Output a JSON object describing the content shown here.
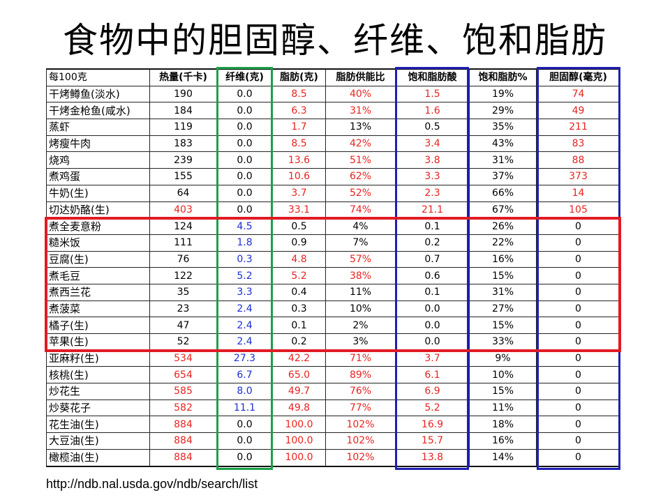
{
  "title": "食物中的胆固醇、纤维、饱和脂肪",
  "colors": {
    "red_text": "#e8231f",
    "blue_text": "#1b2fd1",
    "fiber_box": "#1aa04a",
    "satfat_box": "#1f1fb3",
    "cholesterol_box": "#1f1fb3",
    "plant_food_box": "#e01b24"
  },
  "table": {
    "headers": [
      "每100克",
      "热量(千卡)",
      "纤维(克)",
      "脂肪(克)",
      "脂肪供能比",
      "饱和脂肪酸",
      "饱和脂肪%",
      "胆固醇(毫克)"
    ],
    "rows": [
      {
        "name": "干烤鳟鱼(淡水)",
        "cells": [
          [
            "190",
            "black"
          ],
          [
            "0.0",
            "black"
          ],
          [
            "8.5",
            "red"
          ],
          [
            "40%",
            "red"
          ],
          [
            "1.5",
            "red"
          ],
          [
            "19%",
            "black"
          ],
          [
            "74",
            "red"
          ]
        ]
      },
      {
        "name": "干烤金枪鱼(咸水)",
        "cells": [
          [
            "184",
            "black"
          ],
          [
            "0.0",
            "black"
          ],
          [
            "6.3",
            "red"
          ],
          [
            "31%",
            "red"
          ],
          [
            "1.6",
            "red"
          ],
          [
            "29%",
            "black"
          ],
          [
            "49",
            "red"
          ]
        ]
      },
      {
        "name": "蒸虾",
        "cells": [
          [
            "119",
            "black"
          ],
          [
            "0.0",
            "black"
          ],
          [
            "1.7",
            "red"
          ],
          [
            "13%",
            "black"
          ],
          [
            "0.5",
            "black"
          ],
          [
            "35%",
            "black"
          ],
          [
            "211",
            "red"
          ]
        ]
      },
      {
        "name": "烤瘦牛肉",
        "cells": [
          [
            "183",
            "black"
          ],
          [
            "0.0",
            "black"
          ],
          [
            "8.5",
            "red"
          ],
          [
            "42%",
            "red"
          ],
          [
            "3.4",
            "red"
          ],
          [
            "43%",
            "black"
          ],
          [
            "83",
            "red"
          ]
        ]
      },
      {
        "name": "烧鸡",
        "cells": [
          [
            "239",
            "black"
          ],
          [
            "0.0",
            "black"
          ],
          [
            "13.6",
            "red"
          ],
          [
            "51%",
            "red"
          ],
          [
            "3.8",
            "red"
          ],
          [
            "31%",
            "black"
          ],
          [
            "88",
            "red"
          ]
        ]
      },
      {
        "name": "煮鸡蛋",
        "cells": [
          [
            "155",
            "black"
          ],
          [
            "0.0",
            "black"
          ],
          [
            "10.6",
            "red"
          ],
          [
            "62%",
            "red"
          ],
          [
            "3.3",
            "red"
          ],
          [
            "37%",
            "black"
          ],
          [
            "373",
            "red"
          ]
        ]
      },
      {
        "name": "牛奶(生)",
        "cells": [
          [
            "64",
            "black"
          ],
          [
            "0.0",
            "black"
          ],
          [
            "3.7",
            "red"
          ],
          [
            "52%",
            "red"
          ],
          [
            "2.3",
            "red"
          ],
          [
            "66%",
            "black"
          ],
          [
            "14",
            "red"
          ]
        ]
      },
      {
        "name": "切达奶酪(生)",
        "cells": [
          [
            "403",
            "red"
          ],
          [
            "0.0",
            "black"
          ],
          [
            "33.1",
            "red"
          ],
          [
            "74%",
            "red"
          ],
          [
            "21.1",
            "red"
          ],
          [
            "67%",
            "black"
          ],
          [
            "105",
            "red"
          ]
        ]
      },
      {
        "name": "煮全麦意粉",
        "cells": [
          [
            "124",
            "black"
          ],
          [
            "4.5",
            "blue"
          ],
          [
            "0.5",
            "black"
          ],
          [
            "4%",
            "black"
          ],
          [
            "0.1",
            "black"
          ],
          [
            "26%",
            "black"
          ],
          [
            "0",
            "black"
          ]
        ]
      },
      {
        "name": "糙米饭",
        "cells": [
          [
            "111",
            "black"
          ],
          [
            "1.8",
            "blue"
          ],
          [
            "0.9",
            "black"
          ],
          [
            "7%",
            "black"
          ],
          [
            "0.2",
            "black"
          ],
          [
            "22%",
            "black"
          ],
          [
            "0",
            "black"
          ]
        ]
      },
      {
        "name": "豆腐(生)",
        "cells": [
          [
            "76",
            "black"
          ],
          [
            "0.3",
            "blue"
          ],
          [
            "4.8",
            "red"
          ],
          [
            "57%",
            "red"
          ],
          [
            "0.7",
            "black"
          ],
          [
            "16%",
            "black"
          ],
          [
            "0",
            "black"
          ]
        ]
      },
      {
        "name": "煮毛豆",
        "cells": [
          [
            "122",
            "black"
          ],
          [
            "5.2",
            "blue"
          ],
          [
            "5.2",
            "red"
          ],
          [
            "38%",
            "red"
          ],
          [
            "0.6",
            "black"
          ],
          [
            "15%",
            "black"
          ],
          [
            "0",
            "black"
          ]
        ]
      },
      {
        "name": "煮西兰花",
        "cells": [
          [
            "35",
            "black"
          ],
          [
            "3.3",
            "blue"
          ],
          [
            "0.4",
            "black"
          ],
          [
            "11%",
            "black"
          ],
          [
            "0.1",
            "black"
          ],
          [
            "31%",
            "black"
          ],
          [
            "0",
            "black"
          ]
        ]
      },
      {
        "name": "煮菠菜",
        "cells": [
          [
            "23",
            "black"
          ],
          [
            "2.4",
            "blue"
          ],
          [
            "0.3",
            "black"
          ],
          [
            "10%",
            "black"
          ],
          [
            "0.0",
            "black"
          ],
          [
            "27%",
            "black"
          ],
          [
            "0",
            "black"
          ]
        ]
      },
      {
        "name": "橘子(生)",
        "cells": [
          [
            "47",
            "black"
          ],
          [
            "2.4",
            "blue"
          ],
          [
            "0.1",
            "black"
          ],
          [
            "2%",
            "black"
          ],
          [
            "0.0",
            "black"
          ],
          [
            "15%",
            "black"
          ],
          [
            "0",
            "black"
          ]
        ]
      },
      {
        "name": "苹果(生)",
        "cells": [
          [
            "52",
            "black"
          ],
          [
            "2.4",
            "blue"
          ],
          [
            "0.2",
            "black"
          ],
          [
            "3%",
            "black"
          ],
          [
            "0.0",
            "black"
          ],
          [
            "33%",
            "black"
          ],
          [
            "0",
            "black"
          ]
        ]
      },
      {
        "name": "亚麻籽(生)",
        "cells": [
          [
            "534",
            "red"
          ],
          [
            "27.3",
            "blue"
          ],
          [
            "42.2",
            "red"
          ],
          [
            "71%",
            "red"
          ],
          [
            "3.7",
            "red"
          ],
          [
            "9%",
            "black"
          ],
          [
            "0",
            "black"
          ]
        ]
      },
      {
        "name": "核桃(生)",
        "cells": [
          [
            "654",
            "red"
          ],
          [
            "6.7",
            "blue"
          ],
          [
            "65.0",
            "red"
          ],
          [
            "89%",
            "red"
          ],
          [
            "6.1",
            "red"
          ],
          [
            "10%",
            "black"
          ],
          [
            "0",
            "black"
          ]
        ]
      },
      {
        "name": "炒花生",
        "cells": [
          [
            "585",
            "red"
          ],
          [
            "8.0",
            "blue"
          ],
          [
            "49.7",
            "red"
          ],
          [
            "76%",
            "red"
          ],
          [
            "6.9",
            "red"
          ],
          [
            "15%",
            "black"
          ],
          [
            "0",
            "black"
          ]
        ]
      },
      {
        "name": "炒葵花子",
        "cells": [
          [
            "582",
            "red"
          ],
          [
            "11.1",
            "blue"
          ],
          [
            "49.8",
            "red"
          ],
          [
            "77%",
            "red"
          ],
          [
            "5.2",
            "red"
          ],
          [
            "11%",
            "black"
          ],
          [
            "0",
            "black"
          ]
        ]
      },
      {
        "name": "花生油(生)",
        "cells": [
          [
            "884",
            "red"
          ],
          [
            "0.0",
            "black"
          ],
          [
            "100.0",
            "red"
          ],
          [
            "102%",
            "red"
          ],
          [
            "16.9",
            "red"
          ],
          [
            "18%",
            "black"
          ],
          [
            "0",
            "black"
          ]
        ]
      },
      {
        "name": "大豆油(生)",
        "cells": [
          [
            "884",
            "red"
          ],
          [
            "0.0",
            "black"
          ],
          [
            "100.0",
            "red"
          ],
          [
            "102%",
            "red"
          ],
          [
            "15.7",
            "red"
          ],
          [
            "16%",
            "black"
          ],
          [
            "0",
            "black"
          ]
        ]
      },
      {
        "name": "橄榄油(生)",
        "cells": [
          [
            "884",
            "red"
          ],
          [
            "0.0",
            "black"
          ],
          [
            "100.0",
            "red"
          ],
          [
            "102%",
            "red"
          ],
          [
            "13.8",
            "red"
          ],
          [
            "14%",
            "black"
          ],
          [
            "0",
            "black"
          ]
        ]
      }
    ]
  },
  "source_url": "http://ndb.nal.usda.gov/ndb/search/list"
}
